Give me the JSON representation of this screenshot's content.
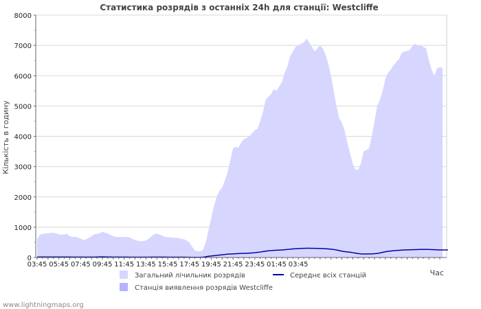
{
  "chart_data": {
    "type": "area",
    "title": "Статистика розрядів з останніх 24h для станції: Westcliffe",
    "ylabel": "Кількість в годину",
    "xlabel": "Час",
    "ylim": [
      0,
      8000
    ],
    "yticks": [
      0,
      1000,
      2000,
      3000,
      4000,
      5000,
      6000,
      7000,
      8000
    ],
    "x_tick_labels": [
      "03:45",
      "05:45",
      "07:45",
      "09:45",
      "11:45",
      "13:45",
      "15:45",
      "17:45",
      "19:45",
      "21:45",
      "23:45",
      "01:45",
      "03:45"
    ],
    "x_step_minutes": 15,
    "series": [
      {
        "name": "Загальний лічильник розрядів",
        "color": "#d6d6ff",
        "values": [
          600,
          750,
          780,
          790,
          800,
          810,
          820,
          800,
          760,
          750,
          760,
          780,
          700,
          680,
          680,
          660,
          620,
          580,
          600,
          650,
          700,
          770,
          780,
          800,
          850,
          820,
          790,
          740,
          700,
          680,
          680,
          680,
          680,
          680,
          660,
          620,
          580,
          550,
          540,
          540,
          560,
          620,
          700,
          770,
          790,
          760,
          720,
          680,
          670,
          660,
          660,
          650,
          640,
          620,
          600,
          560,
          500,
          350,
          230,
          210,
          200,
          250,
          500,
          900,
          1300,
          1700,
          2000,
          2200,
          2300,
          2550,
          2800,
          3200,
          3600,
          3650,
          3620,
          3800,
          3900,
          3950,
          4000,
          4100,
          4200,
          4250,
          4500,
          4800,
          5200,
          5300,
          5400,
          5550,
          5500,
          5650,
          5800,
          6100,
          6300,
          6650,
          6800,
          6950,
          7000,
          7050,
          7100,
          7220,
          7100,
          6950,
          6800,
          6900,
          7000,
          6900,
          6700,
          6400,
          6000,
          5500,
          5000,
          4600,
          4450,
          4200,
          3800,
          3450,
          3100,
          2900,
          2900,
          3100,
          3500,
          3550,
          3600,
          4000,
          4500,
          5000,
          5200,
          5500,
          5900,
          6100,
          6200,
          6350,
          6450,
          6550,
          6750,
          6800,
          6820,
          6850,
          7000,
          7050,
          7000,
          7000,
          6950,
          6900,
          6500,
          6200,
          6000,
          6250,
          6280,
          6250
        ]
      },
      {
        "name": "Середнє всіх станцій",
        "color": "#0000a0",
        "values": [
          15,
          16,
          16,
          17,
          17,
          17,
          17,
          18,
          18,
          17,
          16,
          16,
          16,
          15,
          14,
          14,
          13,
          13,
          13,
          13,
          14,
          15,
          17,
          20,
          22,
          20,
          18,
          16,
          15,
          14,
          14,
          14,
          13,
          13,
          12,
          12,
          11,
          11,
          11,
          11,
          11,
          12,
          13,
          14,
          15,
          15,
          14,
          13,
          12,
          12,
          12,
          11,
          11,
          10,
          10,
          9,
          8,
          6,
          5,
          5,
          6,
          10,
          25,
          40,
          50,
          60,
          70,
          80,
          90,
          100,
          110,
          115,
          120,
          125,
          130,
          135,
          138,
          140,
          145,
          150,
          160,
          170,
          180,
          195,
          210,
          220,
          228,
          235,
          240,
          245,
          250,
          258,
          265,
          275,
          283,
          290,
          296,
          300,
          303,
          305,
          305,
          304,
          302,
          300,
          298,
          295,
          290,
          283,
          275,
          265,
          250,
          230,
          210,
          195,
          185,
          175,
          160,
          145,
          130,
          120,
          115,
          115,
          118,
          120,
          125,
          135,
          150,
          170,
          190,
          205,
          215,
          225,
          232,
          238,
          243,
          248,
          252,
          255,
          258,
          262,
          264,
          265,
          265,
          266,
          265,
          262,
          258,
          255,
          250,
          248,
          250,
          252
        ]
      },
      {
        "name": "Станція виявлення розрядів Westcliffe",
        "color": "#b3b3ff",
        "values": [
          0,
          0,
          0,
          0,
          0,
          0,
          0,
          0,
          0,
          0,
          0,
          0,
          0,
          0,
          0,
          0,
          0,
          0,
          0,
          0,
          0,
          0,
          0,
          0,
          0,
          0,
          0,
          0,
          0,
          0,
          0,
          0,
          0,
          0,
          0,
          0,
          0,
          0,
          0,
          0,
          0,
          0,
          0,
          0,
          0,
          0,
          0,
          0,
          0,
          0,
          0,
          0,
          0,
          0,
          0,
          0,
          0,
          0,
          0,
          0,
          0,
          0,
          0,
          0,
          0,
          0,
          0,
          0,
          0,
          0,
          0,
          0,
          0,
          0,
          0,
          0,
          0,
          0,
          0,
          0,
          0,
          0,
          0,
          0,
          0,
          0,
          0,
          0,
          0,
          0,
          0,
          0,
          0,
          0,
          0,
          0,
          0,
          0,
          0,
          0,
          0,
          0,
          0,
          0,
          0,
          0,
          0,
          0,
          0,
          0,
          0,
          0,
          0,
          0,
          0,
          0,
          0,
          0,
          0,
          0,
          0,
          0,
          0,
          0,
          0,
          0,
          0,
          0,
          0,
          0,
          0,
          0,
          0,
          0,
          0,
          0,
          0,
          0,
          0,
          0,
          0,
          0,
          0,
          0,
          0,
          0,
          0,
          0,
          0,
          0,
          0,
          0
        ]
      }
    ],
    "legend": [
      {
        "label": "Загальний лічильник розрядів",
        "kind": "box",
        "color": "#d6d6ff"
      },
      {
        "label": "Середнє всіх станцій",
        "kind": "line",
        "color": "#0000a0"
      },
      {
        "label": "Станція виявлення розрядів Westcliffe",
        "kind": "box",
        "color": "#b3b3ff"
      }
    ],
    "grid": true,
    "legend_position": "bottom"
  },
  "footer": "www.lightningmaps.org"
}
